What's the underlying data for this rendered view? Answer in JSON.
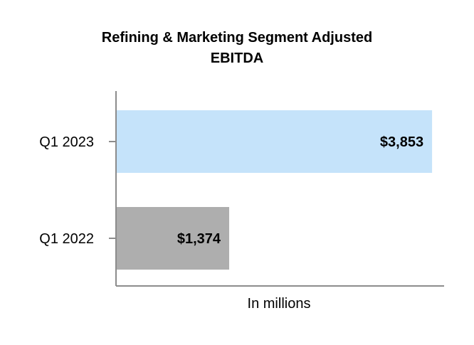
{
  "chart_data": {
    "type": "bar",
    "orientation": "horizontal",
    "title_lines": [
      "Refining & Marketing Segment Adjusted",
      "EBITDA"
    ],
    "categories": [
      "Q1 2023",
      "Q1 2022"
    ],
    "values": [
      3853,
      1374
    ],
    "data_labels": [
      "$3,853",
      "$1,374"
    ],
    "bar_colors": [
      "#c5e3fa",
      "#aeaeae"
    ],
    "xlabel": "In millions",
    "xlim": [
      0,
      4000
    ],
    "grid": false
  }
}
